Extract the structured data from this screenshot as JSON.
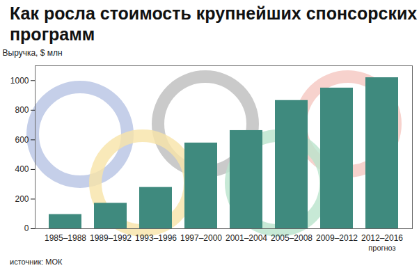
{
  "chart_data": {
    "type": "bar",
    "title": "Как росла стоимость крупнейших спонсорских программ",
    "y_label": "Выручка, $ млн",
    "categories": [
      "1985–1988",
      "1989–1992",
      "1993–1996",
      "1997–2000",
      "2001–2004",
      "2005–2008",
      "2009–2012",
      "2012–2016"
    ],
    "values": [
      96,
      172,
      279,
      579,
      663,
      866,
      950,
      1020
    ],
    "color": "#3f8a7e",
    "ylim": [
      0,
      1100
    ],
    "yticks": [
      0,
      200,
      400,
      600,
      800,
      1000
    ],
    "grid": false,
    "annotation": "прогноз",
    "source": "источник: МОК"
  }
}
